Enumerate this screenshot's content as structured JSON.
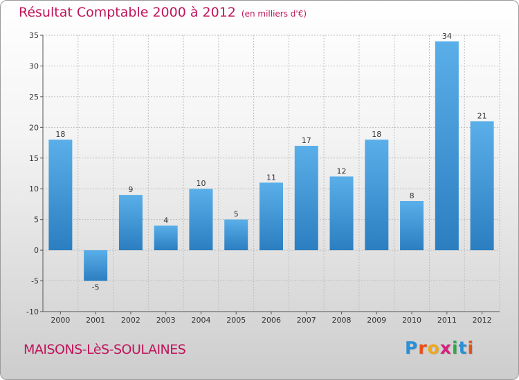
{
  "header": {
    "title": "Résultat Comptable 2000 à 2012",
    "subtitle": "(en milliers d'€)"
  },
  "footer": {
    "commune": "MAISONS-LèS-SOULAINES",
    "logo_letters": [
      "P",
      "r",
      "o",
      "x",
      "i",
      "t",
      "i"
    ],
    "logo_colors": [
      "#2a8fd8",
      "#e8501a",
      "#f0a81c",
      "#d8207c",
      "#2ea84a",
      "#2a8fd8",
      "#e8501a"
    ]
  },
  "chart_data": {
    "type": "bar",
    "title": "Résultat Comptable 2000 à 2012",
    "subtitle": "(en milliers d'€)",
    "xlabel": "",
    "ylabel": "",
    "categories": [
      "2000",
      "2001",
      "2002",
      "2003",
      "2004",
      "2005",
      "2006",
      "2007",
      "2008",
      "2009",
      "2010",
      "2011",
      "2012"
    ],
    "values": [
      18,
      -5,
      9,
      4,
      10,
      5,
      11,
      17,
      12,
      18,
      8,
      34,
      21
    ],
    "ylim": [
      -10,
      35
    ],
    "yticks": [
      -10,
      -5,
      0,
      5,
      10,
      15,
      20,
      25,
      30,
      35
    ],
    "grid": true,
    "colors": {
      "bar_top": "#5aafe9",
      "bar_bottom": "#2b7ec0",
      "grid": "#bdbdbd",
      "axis": "#555555"
    }
  }
}
